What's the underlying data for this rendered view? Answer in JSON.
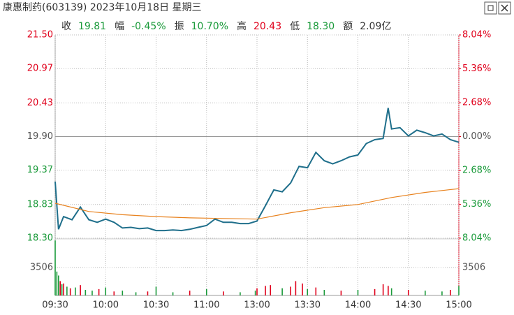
{
  "header": {
    "title": "康惠制药(603139) 2023年10月18日 星期三",
    "stats": [
      {
        "label": "收",
        "value": "19.81",
        "color": "#1a9a3a"
      },
      {
        "label": "幅",
        "value": "-0.45%",
        "color": "#1a9a3a"
      },
      {
        "label": "振",
        "value": "10.70%",
        "color": "#1a9a3a"
      },
      {
        "label": "高",
        "value": "20.43",
        "color": "#e0001b"
      },
      {
        "label": "低",
        "value": "18.30",
        "color": "#1a9a3a"
      },
      {
        "label": "额",
        "value": "2.09亿",
        "color": "#333333"
      }
    ]
  },
  "chart_data": [
    {
      "type": "line",
      "xlim": [
        0,
        240
      ],
      "xticks": [
        {
          "value": 0,
          "label": "09:30"
        },
        {
          "value": 30,
          "label": "10:00"
        },
        {
          "value": 60,
          "label": "10:30"
        },
        {
          "value": 90,
          "label": "11:00"
        },
        {
          "value": 120,
          "label": "13:00"
        },
        {
          "value": 150,
          "label": "13:30"
        },
        {
          "value": 180,
          "label": "14:00"
        },
        {
          "value": 210,
          "label": "14:30"
        },
        {
          "value": 240,
          "label": "15:00"
        }
      ],
      "ylim": [
        18.3,
        21.5
      ],
      "yticks": [
        {
          "value": 21.5,
          "label": "21.50"
        },
        20.97,
        20.43,
        {
          "value": 19.9,
          "label": "19.90"
        },
        19.37,
        18.83,
        {
          "value": 18.3,
          "label": "18.30"
        }
      ],
      "y2lim": [
        -8.04,
        8.04
      ],
      "y2ticks": [
        {
          "value": 8.04,
          "label": "8.04%"
        },
        {
          "value": 5.36,
          "label": "5.36%"
        },
        {
          "value": 2.68,
          "label": "2.68%"
        },
        {
          "value": 0,
          "label": "0.00%"
        },
        {
          "value": -2.68,
          "label": "2.68%"
        },
        {
          "value": -5.36,
          "label": "5.36%"
        },
        {
          "value": -8.04,
          "label": "8.04%"
        }
      ],
      "grid": true,
      "series": [
        {
          "color": "#1f6f8b",
          "x": [
            0,
            2,
            5,
            10,
            15,
            20,
            25,
            30,
            35,
            40,
            45,
            50,
            55,
            60,
            65,
            70,
            75,
            80,
            85,
            90,
            95,
            100,
            105,
            110,
            115,
            120,
            125,
            130,
            135,
            140,
            145,
            150,
            155,
            160,
            165,
            170,
            175,
            180,
            185,
            190,
            195,
            198,
            200,
            205,
            210,
            215,
            220,
            225,
            230,
            235,
            240
          ],
          "values": [
            19.19,
            18.44,
            18.64,
            18.59,
            18.79,
            18.59,
            18.55,
            18.6,
            18.55,
            18.46,
            18.47,
            18.45,
            18.46,
            18.42,
            18.42,
            18.43,
            18.42,
            18.44,
            18.47,
            18.5,
            18.6,
            18.55,
            18.55,
            18.53,
            18.53,
            18.57,
            18.81,
            19.06,
            19.03,
            19.17,
            19.43,
            19.41,
            19.65,
            19.52,
            19.47,
            19.52,
            19.58,
            19.61,
            19.79,
            19.85,
            19.87,
            20.35,
            20.02,
            20.04,
            19.91,
            20.0,
            19.96,
            19.91,
            19.94,
            19.85,
            19.81
          ]
        },
        {
          "color": "#e8821e",
          "x": [
            0,
            20,
            40,
            60,
            80,
            100,
            120,
            140,
            160,
            180,
            200,
            220,
            240
          ],
          "values": [
            18.85,
            18.72,
            18.67,
            18.64,
            18.62,
            18.61,
            18.6,
            18.7,
            18.78,
            18.83,
            18.94,
            19.02,
            19.08
          ]
        }
      ]
    },
    {
      "type": "bar",
      "xlim": [
        0,
        240
      ],
      "ylim": [
        0,
        7012
      ],
      "yticks": [
        3506
      ],
      "x": [
        0,
        1,
        2,
        3,
        4,
        5,
        7,
        9,
        12,
        15,
        18,
        22,
        26,
        30,
        35,
        40,
        48,
        55,
        60,
        70,
        80,
        90,
        100,
        110,
        119,
        120,
        125,
        128,
        135,
        140,
        143,
        147,
        150,
        155,
        160,
        170,
        180,
        190,
        195,
        198,
        200,
        210,
        220,
        230,
        235,
        240
      ],
      "values": [
        6900,
        3000,
        2500,
        1800,
        1400,
        1500,
        1100,
        900,
        1000,
        1300,
        700,
        600,
        800,
        1000,
        500,
        600,
        400,
        500,
        1100,
        400,
        600,
        800,
        500,
        400,
        600,
        900,
        1200,
        1300,
        900,
        1100,
        1800,
        1500,
        800,
        1000,
        700,
        600,
        700,
        800,
        1400,
        1200,
        900,
        700,
        600,
        500,
        700,
        1200
      ],
      "colors": [
        "#1a9a3a",
        "#1a9a3a",
        "#1a9a3a",
        "#e0001b",
        "#1a9a3a",
        "#e0001b",
        "#1a9a3a",
        "#e0001b",
        "#1a9a3a",
        "#e0001b",
        "#1a9a3a",
        "#1a9a3a",
        "#e0001b",
        "#1a9a3a",
        "#e0001b",
        "#1a9a3a",
        "#1a9a3a",
        "#e0001b",
        "#1a9a3a",
        "#1a9a3a",
        "#e0001b",
        "#1a9a3a",
        "#e0001b",
        "#1a9a3a",
        "#1a9a3a",
        "#e0001b",
        "#e0001b",
        "#e0001b",
        "#1a9a3a",
        "#e0001b",
        "#e0001b",
        "#e0001b",
        "#1a9a3a",
        "#e0001b",
        "#1a9a3a",
        "#e0001b",
        "#1a9a3a",
        "#e0001b",
        "#e0001b",
        "#e0001b",
        "#1a9a3a",
        "#e0001b",
        "#1a9a3a",
        "#1a9a3a",
        "#e0001b",
        "#1a9a3a"
      ]
    }
  ]
}
